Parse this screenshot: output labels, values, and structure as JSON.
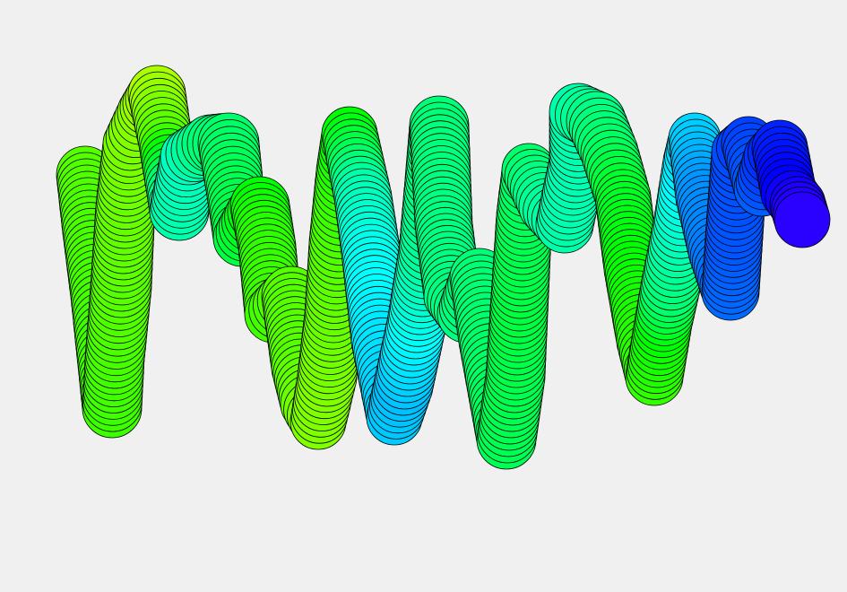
{
  "canvas": {
    "background": "#f0f0f0"
  },
  "brush_stroke": {
    "shape": "circle",
    "outline_color": "#000000",
    "gradient": [
      "#ccff00",
      "#33ff00",
      "#00ff66",
      "#00ffcc",
      "#00ccff",
      "#0066ff",
      "#0000ff"
    ]
  }
}
